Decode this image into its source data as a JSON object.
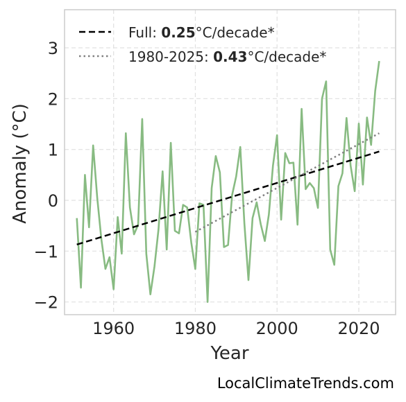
{
  "chart_data": {
    "type": "line",
    "xlabel": "Year",
    "ylabel": "Anomaly (°C)",
    "xlim": [
      1948,
      2029
    ],
    "ylim": [
      -2.25,
      3.75
    ],
    "xticks": [
      1960,
      1980,
      2000,
      2020
    ],
    "yticks": [
      -2,
      -1,
      0,
      1,
      2,
      3
    ],
    "ytick_labels": [
      "−2",
      "−1",
      "0",
      "1",
      "2",
      "3"
    ],
    "grid": true,
    "legend_position": "top-left",
    "series": [
      {
        "kind": "observed",
        "color": "#88bb82",
        "x": [
          1951,
          1952,
          1953,
          1954,
          1955,
          1956,
          1957,
          1958,
          1959,
          1960,
          1961,
          1962,
          1963,
          1964,
          1965,
          1966,
          1967,
          1968,
          1969,
          1970,
          1971,
          1972,
          1973,
          1974,
          1975,
          1976,
          1977,
          1978,
          1979,
          1980,
          1981,
          1982,
          1983,
          1984,
          1985,
          1986,
          1987,
          1988,
          1989,
          1990,
          1991,
          1992,
          1993,
          1994,
          1995,
          1996,
          1997,
          1998,
          1999,
          2000,
          2001,
          2002,
          2003,
          2004,
          2005,
          2006,
          2007,
          2008,
          2009,
          2010,
          2011,
          2012,
          2013,
          2014,
          2015,
          2016,
          2017,
          2018,
          2019,
          2020,
          2021,
          2022,
          2023,
          2024,
          2025
        ],
        "values": [
          -0.35,
          -1.72,
          0.5,
          -0.53,
          1.08,
          0.05,
          -0.76,
          -1.35,
          -1.12,
          -1.75,
          -0.33,
          -1.05,
          1.32,
          -0.14,
          -0.67,
          -0.48,
          1.6,
          -1.05,
          -1.85,
          -1.3,
          -0.57,
          0.57,
          -0.97,
          1.13,
          -0.6,
          -0.65,
          -0.09,
          -0.14,
          -0.83,
          -1.35,
          -0.06,
          -0.09,
          -2.0,
          0.24,
          0.87,
          0.55,
          -0.92,
          -0.88,
          0.1,
          0.47,
          1.05,
          -0.45,
          -1.57,
          -0.35,
          -0.04,
          -0.47,
          -0.8,
          -0.28,
          0.68,
          1.28,
          -0.38,
          0.93,
          0.73,
          0.74,
          -0.48,
          1.8,
          0.22,
          0.34,
          0.24,
          -0.15,
          2.0,
          2.34,
          -0.97,
          -1.27,
          0.28,
          0.53,
          1.62,
          0.68,
          0.18,
          1.51,
          0.31,
          1.63,
          1.09,
          2.15,
          2.74
        ]
      },
      {
        "kind": "trend-full",
        "color": "#000000",
        "dash": "dashed",
        "x": [
          1951,
          2025
        ],
        "values": [
          -0.87,
          0.96
        ]
      },
      {
        "kind": "trend-recent",
        "color": "#808080",
        "dash": "dotted",
        "x": [
          1980,
          2025
        ],
        "values": [
          -0.62,
          1.32
        ]
      }
    ]
  },
  "legend": {
    "full": {
      "prefix": "Full: ",
      "value": "0.25",
      "suffix": "°C/decade*"
    },
    "recent": {
      "prefix": "1980-2025: ",
      "value": "0.43",
      "suffix": "°C/decade*"
    }
  },
  "watermark": "LocalClimateTrends.com"
}
